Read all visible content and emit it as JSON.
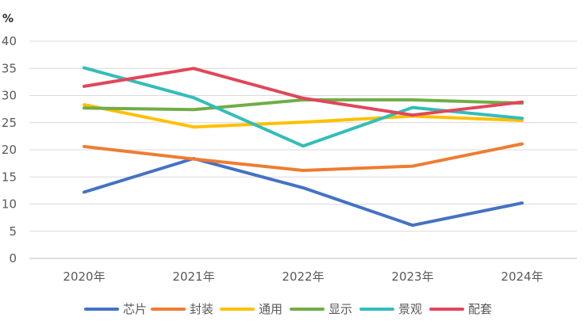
{
  "chart_data": {
    "type": "line",
    "title": "",
    "xlabel": "",
    "ylabel": "%",
    "ylim": [
      0,
      40
    ],
    "yticks": [
      "0",
      "5",
      "10",
      "15",
      "20",
      "25",
      "30",
      "35",
      "40"
    ],
    "grid": true,
    "legend_position": "bottom",
    "categories": [
      "2020年",
      "2021年",
      "2022年",
      "2023年",
      "2024年"
    ],
    "series": [
      {
        "name": "芯片",
        "color": "#4472C4",
        "values": [
          12.2,
          18.4,
          13.0,
          6.1,
          10.2
        ]
      },
      {
        "name": "封装",
        "color": "#ED7D31",
        "values": [
          20.6,
          18.3,
          16.2,
          17.0,
          21.1
        ]
      },
      {
        "name": "通用",
        "color": "#FFC000",
        "values": [
          28.3,
          24.2,
          25.1,
          26.2,
          25.4
        ]
      },
      {
        "name": "显示",
        "color": "#70AD47",
        "values": [
          27.7,
          27.4,
          29.2,
          29.2,
          28.6
        ]
      },
      {
        "name": "景观",
        "color": "#33BDB8",
        "values": [
          35.1,
          29.6,
          20.7,
          27.8,
          25.8
        ]
      },
      {
        "name": "配套",
        "color": "#E0475B",
        "values": [
          31.7,
          35.0,
          29.5,
          26.4,
          28.8
        ]
      }
    ]
  }
}
